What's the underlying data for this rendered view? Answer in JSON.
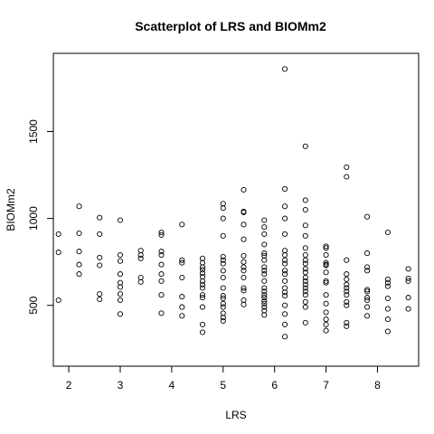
{
  "chart_data": {
    "type": "scatter",
    "title": "Scatterplot of LRS and BIOMm2",
    "xlabel": "LRS",
    "ylabel": "BIOMm2",
    "xlim": [
      1.7,
      8.8
    ],
    "ylim": [
      150,
      1950
    ],
    "xticks": [
      2,
      3,
      4,
      5,
      6,
      7,
      8
    ],
    "yticks": [
      500,
      1000,
      1500
    ],
    "grid": false,
    "legend": "none",
    "marker": "open-circle",
    "points": [
      {
        "x": 1.8,
        "y": 910
      },
      {
        "x": 1.8,
        "y": 805
      },
      {
        "x": 1.8,
        "y": 530
      },
      {
        "x": 2.2,
        "y": 1070
      },
      {
        "x": 2.2,
        "y": 915
      },
      {
        "x": 2.2,
        "y": 810
      },
      {
        "x": 2.2,
        "y": 735
      },
      {
        "x": 2.2,
        "y": 680
      },
      {
        "x": 2.6,
        "y": 1005
      },
      {
        "x": 2.6,
        "y": 910
      },
      {
        "x": 2.6,
        "y": 775
      },
      {
        "x": 2.6,
        "y": 730
      },
      {
        "x": 2.6,
        "y": 565
      },
      {
        "x": 2.6,
        "y": 535
      },
      {
        "x": 3.0,
        "y": 990
      },
      {
        "x": 3.0,
        "y": 790
      },
      {
        "x": 3.0,
        "y": 755
      },
      {
        "x": 3.0,
        "y": 680
      },
      {
        "x": 3.0,
        "y": 630
      },
      {
        "x": 3.0,
        "y": 605
      },
      {
        "x": 3.0,
        "y": 565
      },
      {
        "x": 3.0,
        "y": 530
      },
      {
        "x": 3.0,
        "y": 450
      },
      {
        "x": 3.4,
        "y": 815
      },
      {
        "x": 3.4,
        "y": 790
      },
      {
        "x": 3.4,
        "y": 770
      },
      {
        "x": 3.4,
        "y": 660
      },
      {
        "x": 3.4,
        "y": 635
      },
      {
        "x": 3.8,
        "y": 920
      },
      {
        "x": 3.8,
        "y": 905
      },
      {
        "x": 3.8,
        "y": 810
      },
      {
        "x": 3.8,
        "y": 790
      },
      {
        "x": 3.8,
        "y": 735
      },
      {
        "x": 3.8,
        "y": 680
      },
      {
        "x": 3.8,
        "y": 640
      },
      {
        "x": 3.8,
        "y": 560
      },
      {
        "x": 3.8,
        "y": 455
      },
      {
        "x": 4.2,
        "y": 965
      },
      {
        "x": 4.2,
        "y": 760
      },
      {
        "x": 4.2,
        "y": 745
      },
      {
        "x": 4.2,
        "y": 660
      },
      {
        "x": 4.2,
        "y": 550
      },
      {
        "x": 4.2,
        "y": 490
      },
      {
        "x": 4.2,
        "y": 440
      },
      {
        "x": 4.6,
        "y": 770
      },
      {
        "x": 4.6,
        "y": 745
      },
      {
        "x": 4.6,
        "y": 720
      },
      {
        "x": 4.6,
        "y": 705
      },
      {
        "x": 4.6,
        "y": 685
      },
      {
        "x": 4.6,
        "y": 665
      },
      {
        "x": 4.6,
        "y": 640
      },
      {
        "x": 4.6,
        "y": 620
      },
      {
        "x": 4.6,
        "y": 600
      },
      {
        "x": 4.6,
        "y": 560
      },
      {
        "x": 4.6,
        "y": 545
      },
      {
        "x": 4.6,
        "y": 490
      },
      {
        "x": 4.6,
        "y": 390
      },
      {
        "x": 4.6,
        "y": 345
      },
      {
        "x": 5.0,
        "y": 1085
      },
      {
        "x": 5.0,
        "y": 1060
      },
      {
        "x": 5.0,
        "y": 1000
      },
      {
        "x": 5.0,
        "y": 900
      },
      {
        "x": 5.0,
        "y": 780
      },
      {
        "x": 5.0,
        "y": 760
      },
      {
        "x": 5.0,
        "y": 740
      },
      {
        "x": 5.0,
        "y": 700
      },
      {
        "x": 5.0,
        "y": 660
      },
      {
        "x": 5.0,
        "y": 600
      },
      {
        "x": 5.0,
        "y": 555
      },
      {
        "x": 5.0,
        "y": 540
      },
      {
        "x": 5.0,
        "y": 510
      },
      {
        "x": 5.0,
        "y": 490
      },
      {
        "x": 5.0,
        "y": 455
      },
      {
        "x": 5.0,
        "y": 430
      },
      {
        "x": 5.0,
        "y": 410
      },
      {
        "x": 5.4,
        "y": 1165
      },
      {
        "x": 5.4,
        "y": 1040
      },
      {
        "x": 5.4,
        "y": 1035
      },
      {
        "x": 5.4,
        "y": 965
      },
      {
        "x": 5.4,
        "y": 880
      },
      {
        "x": 5.4,
        "y": 785
      },
      {
        "x": 5.4,
        "y": 750
      },
      {
        "x": 5.4,
        "y": 720
      },
      {
        "x": 5.4,
        "y": 700
      },
      {
        "x": 5.4,
        "y": 660
      },
      {
        "x": 5.4,
        "y": 600
      },
      {
        "x": 5.4,
        "y": 585
      },
      {
        "x": 5.4,
        "y": 530
      },
      {
        "x": 5.4,
        "y": 505
      },
      {
        "x": 5.8,
        "y": 990
      },
      {
        "x": 5.8,
        "y": 950
      },
      {
        "x": 5.8,
        "y": 910
      },
      {
        "x": 5.8,
        "y": 850
      },
      {
        "x": 5.8,
        "y": 800
      },
      {
        "x": 5.8,
        "y": 785
      },
      {
        "x": 5.8,
        "y": 760
      },
      {
        "x": 5.8,
        "y": 720
      },
      {
        "x": 5.8,
        "y": 700
      },
      {
        "x": 5.8,
        "y": 680
      },
      {
        "x": 5.8,
        "y": 640
      },
      {
        "x": 5.8,
        "y": 600
      },
      {
        "x": 5.8,
        "y": 580
      },
      {
        "x": 5.8,
        "y": 560
      },
      {
        "x": 5.8,
        "y": 545
      },
      {
        "x": 5.8,
        "y": 525
      },
      {
        "x": 5.8,
        "y": 510
      },
      {
        "x": 5.8,
        "y": 490
      },
      {
        "x": 5.8,
        "y": 470
      },
      {
        "x": 5.8,
        "y": 445
      },
      {
        "x": 6.2,
        "y": 1860
      },
      {
        "x": 6.2,
        "y": 1170
      },
      {
        "x": 6.2,
        "y": 1070
      },
      {
        "x": 6.2,
        "y": 1000
      },
      {
        "x": 6.2,
        "y": 910
      },
      {
        "x": 6.2,
        "y": 815
      },
      {
        "x": 6.2,
        "y": 790
      },
      {
        "x": 6.2,
        "y": 760
      },
      {
        "x": 6.2,
        "y": 740
      },
      {
        "x": 6.2,
        "y": 700
      },
      {
        "x": 6.2,
        "y": 680
      },
      {
        "x": 6.2,
        "y": 640
      },
      {
        "x": 6.2,
        "y": 600
      },
      {
        "x": 6.2,
        "y": 575
      },
      {
        "x": 6.2,
        "y": 555
      },
      {
        "x": 6.2,
        "y": 500
      },
      {
        "x": 6.2,
        "y": 450
      },
      {
        "x": 6.2,
        "y": 390
      },
      {
        "x": 6.2,
        "y": 320
      },
      {
        "x": 6.6,
        "y": 1415
      },
      {
        "x": 6.6,
        "y": 1105
      },
      {
        "x": 6.6,
        "y": 1050
      },
      {
        "x": 6.6,
        "y": 960
      },
      {
        "x": 6.6,
        "y": 900
      },
      {
        "x": 6.6,
        "y": 830
      },
      {
        "x": 6.6,
        "y": 790
      },
      {
        "x": 6.6,
        "y": 760
      },
      {
        "x": 6.6,
        "y": 740
      },
      {
        "x": 6.6,
        "y": 710
      },
      {
        "x": 6.6,
        "y": 690
      },
      {
        "x": 6.6,
        "y": 660
      },
      {
        "x": 6.6,
        "y": 640
      },
      {
        "x": 6.6,
        "y": 620
      },
      {
        "x": 6.6,
        "y": 600
      },
      {
        "x": 6.6,
        "y": 580
      },
      {
        "x": 6.6,
        "y": 560
      },
      {
        "x": 6.6,
        "y": 520
      },
      {
        "x": 6.6,
        "y": 490
      },
      {
        "x": 6.6,
        "y": 400
      },
      {
        "x": 7.0,
        "y": 840
      },
      {
        "x": 7.0,
        "y": 830
      },
      {
        "x": 7.0,
        "y": 790
      },
      {
        "x": 7.0,
        "y": 745
      },
      {
        "x": 7.0,
        "y": 735
      },
      {
        "x": 7.0,
        "y": 730
      },
      {
        "x": 7.0,
        "y": 690
      },
      {
        "x": 7.0,
        "y": 640
      },
      {
        "x": 7.0,
        "y": 630
      },
      {
        "x": 7.0,
        "y": 560
      },
      {
        "x": 7.0,
        "y": 510
      },
      {
        "x": 7.0,
        "y": 460
      },
      {
        "x": 7.0,
        "y": 420
      },
      {
        "x": 7.0,
        "y": 390
      },
      {
        "x": 7.0,
        "y": 355
      },
      {
        "x": 7.4,
        "y": 1295
      },
      {
        "x": 7.4,
        "y": 1240
      },
      {
        "x": 7.4,
        "y": 760
      },
      {
        "x": 7.4,
        "y": 680
      },
      {
        "x": 7.4,
        "y": 650
      },
      {
        "x": 7.4,
        "y": 620
      },
      {
        "x": 7.4,
        "y": 600
      },
      {
        "x": 7.4,
        "y": 580
      },
      {
        "x": 7.4,
        "y": 560
      },
      {
        "x": 7.4,
        "y": 520
      },
      {
        "x": 7.4,
        "y": 500
      },
      {
        "x": 7.4,
        "y": 400
      },
      {
        "x": 7.4,
        "y": 380
      },
      {
        "x": 7.8,
        "y": 1010
      },
      {
        "x": 7.8,
        "y": 800
      },
      {
        "x": 7.8,
        "y": 720
      },
      {
        "x": 7.8,
        "y": 700
      },
      {
        "x": 7.8,
        "y": 590
      },
      {
        "x": 7.8,
        "y": 580
      },
      {
        "x": 7.8,
        "y": 545
      },
      {
        "x": 7.8,
        "y": 530
      },
      {
        "x": 7.8,
        "y": 490
      },
      {
        "x": 7.8,
        "y": 440
      },
      {
        "x": 8.2,
        "y": 920
      },
      {
        "x": 8.2,
        "y": 650
      },
      {
        "x": 8.2,
        "y": 630
      },
      {
        "x": 8.2,
        "y": 610
      },
      {
        "x": 8.2,
        "y": 540
      },
      {
        "x": 8.2,
        "y": 480
      },
      {
        "x": 8.2,
        "y": 420
      },
      {
        "x": 8.2,
        "y": 350
      },
      {
        "x": 8.6,
        "y": 710
      },
      {
        "x": 8.6,
        "y": 655
      },
      {
        "x": 8.6,
        "y": 640
      },
      {
        "x": 8.6,
        "y": 545
      },
      {
        "x": 8.6,
        "y": 480
      }
    ]
  }
}
